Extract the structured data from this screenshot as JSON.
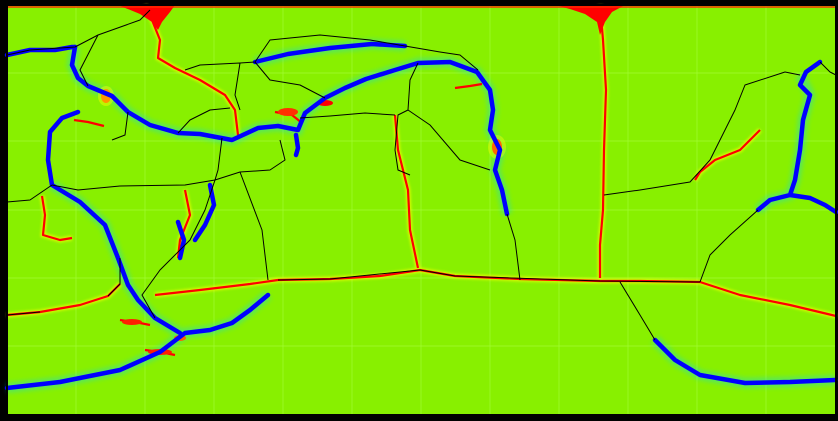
{
  "map": {
    "projection": "equirectangular",
    "field_colormap": [
      "#0000ff",
      "#00c0ff",
      "#88f000",
      "#ffff00",
      "#ff0000"
    ],
    "background_color": "#88f000",
    "frame_color": "#000000",
    "boundary_color": "#000000",
    "grid_color": "#a8ff40",
    "ridge_color": "#ff0000",
    "trench_color": "#0000ff",
    "labels": []
  }
}
